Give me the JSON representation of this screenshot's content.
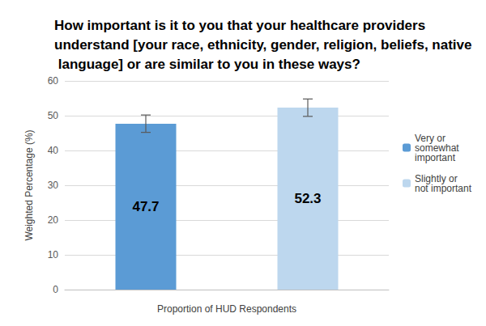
{
  "chart_data": {
    "type": "bar",
    "title": "How important is it to you that your healthcare providers understand [your race, ethnicity, gender, religion, beliefs, native language] or are similar to you in these ways?",
    "categories": [
      null
    ],
    "xlabel": "Proportion of HUD Respondents",
    "ylabel": "Weighted Percentage (%)",
    "series": [
      {
        "name": "Very or somewhat important",
        "color": "#5b9bd5",
        "values": [
          47.7
        ],
        "error": [
          2.5
        ]
      },
      {
        "name": "Slightly or not important",
        "color": "#bdd7ee",
        "values": [
          52.3
        ],
        "error": [
          2.5
        ]
      }
    ],
    "ylim": [
      0,
      60
    ],
    "yticks": [
      0,
      10,
      20,
      30,
      40,
      50,
      60
    ],
    "grid": true,
    "legend": "right",
    "data_labels": true
  }
}
